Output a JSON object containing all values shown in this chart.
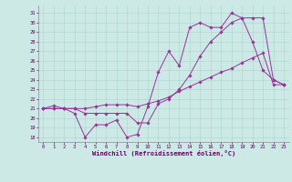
{
  "xlabel": "Windchill (Refroidissement éolien,°C)",
  "xlim": [
    -0.5,
    23.5
  ],
  "ylim": [
    17.5,
    31.8
  ],
  "yticks": [
    18,
    19,
    20,
    21,
    22,
    23,
    24,
    25,
    26,
    27,
    28,
    29,
    30,
    31
  ],
  "xticks": [
    0,
    1,
    2,
    3,
    4,
    5,
    6,
    7,
    8,
    9,
    10,
    11,
    12,
    13,
    14,
    15,
    16,
    17,
    18,
    19,
    20,
    21,
    22,
    23
  ],
  "bg_color": "#cce9e5",
  "line_color": "#993399",
  "grid_color": "#aad4cc",
  "series": [
    {
      "x": [
        0,
        1,
        2,
        3,
        4,
        5,
        6,
        7,
        8,
        9,
        10,
        11,
        12,
        13,
        14,
        15,
        16,
        17,
        18,
        19,
        20,
        21,
        22,
        23
      ],
      "y": [
        21.0,
        21.3,
        21.0,
        20.5,
        18.0,
        19.3,
        19.3,
        19.8,
        18.0,
        18.3,
        21.2,
        24.8,
        27.0,
        25.5,
        29.5,
        30.0,
        29.5,
        29.5,
        31.0,
        30.5,
        28.0,
        25.0,
        24.0,
        23.5
      ]
    },
    {
      "x": [
        0,
        1,
        2,
        3,
        4,
        5,
        6,
        7,
        8,
        9,
        10,
        11,
        12,
        13,
        14,
        15,
        16,
        17,
        18,
        19,
        20,
        21,
        22,
        23
      ],
      "y": [
        21.0,
        21.0,
        21.0,
        21.0,
        20.5,
        20.5,
        20.5,
        20.5,
        20.5,
        19.5,
        19.5,
        21.5,
        22.0,
        23.0,
        24.5,
        26.5,
        28.0,
        29.0,
        30.0,
        30.5,
        30.5,
        30.5,
        24.0,
        23.5
      ]
    },
    {
      "x": [
        0,
        1,
        2,
        3,
        4,
        5,
        6,
        7,
        8,
        9,
        10,
        11,
        12,
        13,
        14,
        15,
        16,
        17,
        18,
        19,
        20,
        21,
        22,
        23
      ],
      "y": [
        21.0,
        21.0,
        21.0,
        21.0,
        21.0,
        21.2,
        21.4,
        21.4,
        21.4,
        21.2,
        21.5,
        21.8,
        22.2,
        22.8,
        23.3,
        23.8,
        24.3,
        24.8,
        25.2,
        25.8,
        26.3,
        26.8,
        23.5,
        23.5
      ]
    }
  ]
}
